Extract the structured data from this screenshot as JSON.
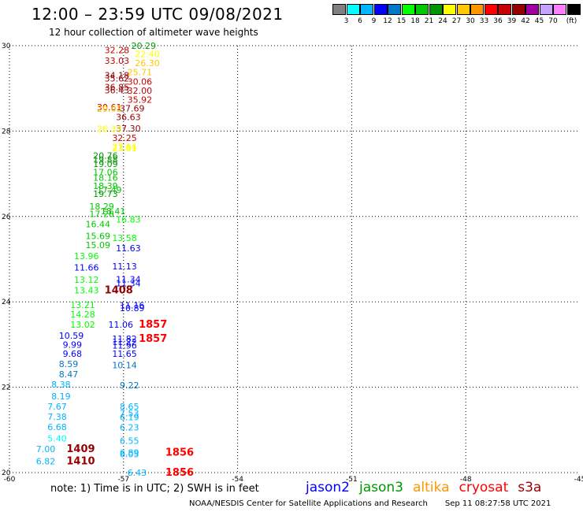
{
  "header": {
    "title": "12:00 – 23:59 UTC 09/08/2021",
    "subtitle": "12 hour collection of altimeter wave heights"
  },
  "colorbar": {
    "colors": [
      "#808080",
      "#00ffff",
      "#00b4ff",
      "#0000ff",
      "#0078c8",
      "#00ff00",
      "#00c800",
      "#009600",
      "#ffff00",
      "#ffc800",
      "#ff9600",
      "#ff0000",
      "#c80000",
      "#960000",
      "#a000a0",
      "#c8a0ff",
      "#ff80ff",
      "#000000"
    ],
    "labels": [
      "3",
      "6",
      "9",
      "12",
      "15",
      "18",
      "21",
      "24",
      "27",
      "30",
      "33",
      "36",
      "39",
      "42",
      "45",
      "70",
      "(ft)"
    ]
  },
  "chart_data": {
    "type": "scatter",
    "xlim": [
      -60,
      -45
    ],
    "ylim": [
      20,
      30
    ],
    "x_ticks": [
      "-60",
      "-57",
      "-54",
      "-51",
      "-48",
      "-45"
    ],
    "y_ticks": [
      "20",
      "22",
      "24",
      "26",
      "28",
      "30"
    ],
    "grid": true,
    "points": [
      {
        "x": -57.5,
        "y": 29.9,
        "v": "32.28",
        "c": "#c80000"
      },
      {
        "x": -56.8,
        "y": 30.0,
        "v": "20.29",
        "c": "#009600"
      },
      {
        "x": -56.7,
        "y": 29.81,
        "v": "22.40",
        "c": "#ffff00"
      },
      {
        "x": -57.5,
        "y": 29.65,
        "v": "33.03",
        "c": "#c80000"
      },
      {
        "x": -56.7,
        "y": 29.59,
        "v": "26.30",
        "c": "#ffc800"
      },
      {
        "x": -56.9,
        "y": 29.38,
        "v": "25.71",
        "c": "#ffc800"
      },
      {
        "x": -57.5,
        "y": 29.31,
        "v": "34.18",
        "c": "#960000"
      },
      {
        "x": -57.5,
        "y": 29.23,
        "v": "35.62",
        "c": "#960000"
      },
      {
        "x": -56.9,
        "y": 29.16,
        "v": "30.06",
        "c": "#c80000"
      },
      {
        "x": -57.5,
        "y": 29.03,
        "v": "36.85",
        "c": "#960000"
      },
      {
        "x": -57.5,
        "y": 28.96,
        "v": "36.43",
        "c": "#960000"
      },
      {
        "x": -56.9,
        "y": 28.95,
        "v": "32.00",
        "c": "#c80000"
      },
      {
        "x": -56.9,
        "y": 28.74,
        "v": "35.92",
        "c": "#c80000"
      },
      {
        "x": -57.7,
        "y": 28.56,
        "v": "30.61",
        "c": "#c80000"
      },
      {
        "x": -57.7,
        "y": 28.52,
        "v": "29.03",
        "c": "#ffc800"
      },
      {
        "x": -57.1,
        "y": 28.53,
        "v": "37.69",
        "c": "#960000"
      },
      {
        "x": -57.2,
        "y": 28.33,
        "v": "36.63",
        "c": "#960000"
      },
      {
        "x": -57.2,
        "y": 28.06,
        "v": "37.30",
        "c": "#960000"
      },
      {
        "x": -57.7,
        "y": 28.05,
        "v": "26.33",
        "c": "#ffff00"
      },
      {
        "x": -57.3,
        "y": 27.84,
        "v": "32.25",
        "c": "#c80000"
      },
      {
        "x": -57.3,
        "y": 27.63,
        "v": "27.64",
        "c": "#ffff00"
      },
      {
        "x": -57.3,
        "y": 27.6,
        "v": "23.81",
        "c": "#ffff00"
      },
      {
        "x": -57.8,
        "y": 27.43,
        "v": "20.76",
        "c": "#009600"
      },
      {
        "x": -57.8,
        "y": 27.33,
        "v": "19.88",
        "c": "#009600"
      },
      {
        "x": -57.8,
        "y": 27.23,
        "v": "19.09",
        "c": "#009600"
      },
      {
        "x": -57.8,
        "y": 27.04,
        "v": "17.06",
        "c": "#00c800"
      },
      {
        "x": -57.8,
        "y": 26.91,
        "v": "18.16",
        "c": "#00c800"
      },
      {
        "x": -57.8,
        "y": 26.72,
        "v": "18.39",
        "c": "#00c800"
      },
      {
        "x": -57.7,
        "y": 26.62,
        "v": "17.49",
        "c": "#00c800"
      },
      {
        "x": -57.8,
        "y": 26.53,
        "v": "19.73",
        "c": "#009600"
      },
      {
        "x": -57.9,
        "y": 26.24,
        "v": "18.29",
        "c": "#00c800"
      },
      {
        "x": -57.6,
        "y": 26.13,
        "v": "18.41",
        "c": "#00c800"
      },
      {
        "x": -57.9,
        "y": 26.06,
        "v": "17.28",
        "c": "#00c800"
      },
      {
        "x": -57.2,
        "y": 25.93,
        "v": "16.83",
        "c": "#00ff00"
      },
      {
        "x": -58.0,
        "y": 25.82,
        "v": "16.44",
        "c": "#00c800"
      },
      {
        "x": -58.0,
        "y": 25.54,
        "v": "15.69",
        "c": "#00c800"
      },
      {
        "x": -57.3,
        "y": 25.5,
        "v": "13.58",
        "c": "#00ff00"
      },
      {
        "x": -58.0,
        "y": 25.33,
        "v": "15.09",
        "c": "#00c800"
      },
      {
        "x": -57.2,
        "y": 25.26,
        "v": "11.63",
        "c": "#0000ff"
      },
      {
        "x": -58.3,
        "y": 25.07,
        "v": "13.96",
        "c": "#00ff00"
      },
      {
        "x": -58.3,
        "y": 24.81,
        "v": "11.66",
        "c": "#0000ff"
      },
      {
        "x": -57.3,
        "y": 24.83,
        "v": "11.13",
        "c": "#0000ff"
      },
      {
        "x": -58.3,
        "y": 24.52,
        "v": "13.12",
        "c": "#00ff00"
      },
      {
        "x": -57.2,
        "y": 24.53,
        "v": "11.34",
        "c": "#0000ff"
      },
      {
        "x": -57.2,
        "y": 24.44,
        "v": "11.34",
        "c": "#0000ff"
      },
      {
        "x": -58.3,
        "y": 24.27,
        "v": "13.43",
        "c": "#00ff00"
      },
      {
        "x": -57.5,
        "y": 24.27,
        "v": "1408",
        "c": "#960000",
        "marker": true
      },
      {
        "x": -58.4,
        "y": 23.93,
        "v": "13.21",
        "c": "#00ff00"
      },
      {
        "x": -57.1,
        "y": 23.92,
        "v": "11.16",
        "c": "#0000ff"
      },
      {
        "x": -57.1,
        "y": 23.86,
        "v": "10.89",
        "c": "#0000ff"
      },
      {
        "x": -58.4,
        "y": 23.71,
        "v": "14.28",
        "c": "#00ff00"
      },
      {
        "x": -58.4,
        "y": 23.47,
        "v": "13.02",
        "c": "#00ff00"
      },
      {
        "x": -57.4,
        "y": 23.47,
        "v": "11.06",
        "c": "#0000ff"
      },
      {
        "x": -56.6,
        "y": 23.47,
        "v": "1857",
        "c": "#ff0000",
        "marker": true
      },
      {
        "x": -58.7,
        "y": 23.21,
        "v": "10.59",
        "c": "#0000ff"
      },
      {
        "x": -57.3,
        "y": 23.14,
        "v": "11.82",
        "c": "#0000ff"
      },
      {
        "x": -57.3,
        "y": 23.06,
        "v": "11.22",
        "c": "#0000ff"
      },
      {
        "x": -56.6,
        "y": 23.14,
        "v": "1857",
        "c": "#ff0000",
        "marker": true
      },
      {
        "x": -58.6,
        "y": 23.0,
        "v": "9.99",
        "c": "#0000ff"
      },
      {
        "x": -57.3,
        "y": 22.98,
        "v": "11.96",
        "c": "#0000ff"
      },
      {
        "x": -58.6,
        "y": 22.79,
        "v": "9.68",
        "c": "#0000ff"
      },
      {
        "x": -57.3,
        "y": 22.79,
        "v": "11.65",
        "c": "#0000ff"
      },
      {
        "x": -58.7,
        "y": 22.55,
        "v": "8.59",
        "c": "#0078c8"
      },
      {
        "x": -57.3,
        "y": 22.52,
        "v": "10.14",
        "c": "#0078c8"
      },
      {
        "x": -58.7,
        "y": 22.31,
        "v": "8.47",
        "c": "#0078c8"
      },
      {
        "x": -58.9,
        "y": 22.07,
        "v": "8.38",
        "c": "#00b4ff"
      },
      {
        "x": -57.1,
        "y": 22.05,
        "v": "9.22",
        "c": "#0078c8"
      },
      {
        "x": -58.9,
        "y": 21.79,
        "v": "8.19",
        "c": "#00b4ff"
      },
      {
        "x": -59.0,
        "y": 21.55,
        "v": "7.67",
        "c": "#00b4ff"
      },
      {
        "x": -57.1,
        "y": 21.55,
        "v": "8.65",
        "c": "#00b4ff"
      },
      {
        "x": -57.1,
        "y": 21.39,
        "v": "7.53",
        "c": "#00b4ff"
      },
      {
        "x": -59.0,
        "y": 21.31,
        "v": "7.38",
        "c": "#00b4ff"
      },
      {
        "x": -57.1,
        "y": 21.3,
        "v": "6.19",
        "c": "#00b4ff"
      },
      {
        "x": -59.0,
        "y": 21.07,
        "v": "6.68",
        "c": "#00b4ff"
      },
      {
        "x": -57.1,
        "y": 21.06,
        "v": "6.23",
        "c": "#00b4ff"
      },
      {
        "x": -59.0,
        "y": 20.8,
        "v": "5.40",
        "c": "#00ffff"
      },
      {
        "x": -57.1,
        "y": 20.75,
        "v": "6.55",
        "c": "#00b4ff"
      },
      {
        "x": -59.3,
        "y": 20.55,
        "v": "7.00",
        "c": "#00b4ff"
      },
      {
        "x": -58.5,
        "y": 20.55,
        "v": "1409",
        "c": "#960000",
        "marker": true
      },
      {
        "x": -57.1,
        "y": 20.47,
        "v": "6.89",
        "c": "#00b4ff"
      },
      {
        "x": -57.1,
        "y": 20.43,
        "v": "6.05",
        "c": "#00b4ff"
      },
      {
        "x": -55.9,
        "y": 20.47,
        "v": "1856",
        "c": "#ff0000",
        "marker": true
      },
      {
        "x": -59.3,
        "y": 20.27,
        "v": "6.82",
        "c": "#00b4ff"
      },
      {
        "x": -58.5,
        "y": 20.27,
        "v": "1410",
        "c": "#960000",
        "marker": true
      },
      {
        "x": -56.9,
        "y": 20.0,
        "v": "6.43",
        "c": "#00b4ff"
      },
      {
        "x": -55.9,
        "y": 20.0,
        "v": "1856",
        "c": "#ff0000",
        "marker": true
      }
    ]
  },
  "footer": {
    "note": "note:  1) Time is in UTC;  2) SWH is in feet",
    "satellites": [
      {
        "name": "jason2",
        "color": "#0000ff"
      },
      {
        "name": "jason3",
        "color": "#009600"
      },
      {
        "name": "altika",
        "color": "#ff9600"
      },
      {
        "name": "cryosat",
        "color": "#ff0000"
      },
      {
        "name": "s3a",
        "color": "#960000"
      }
    ],
    "credit": "NOAA/NESDIS Center for Satellite Applications and Research",
    "timestamp": "Sep 11 08:27:58 UTC 2021"
  }
}
